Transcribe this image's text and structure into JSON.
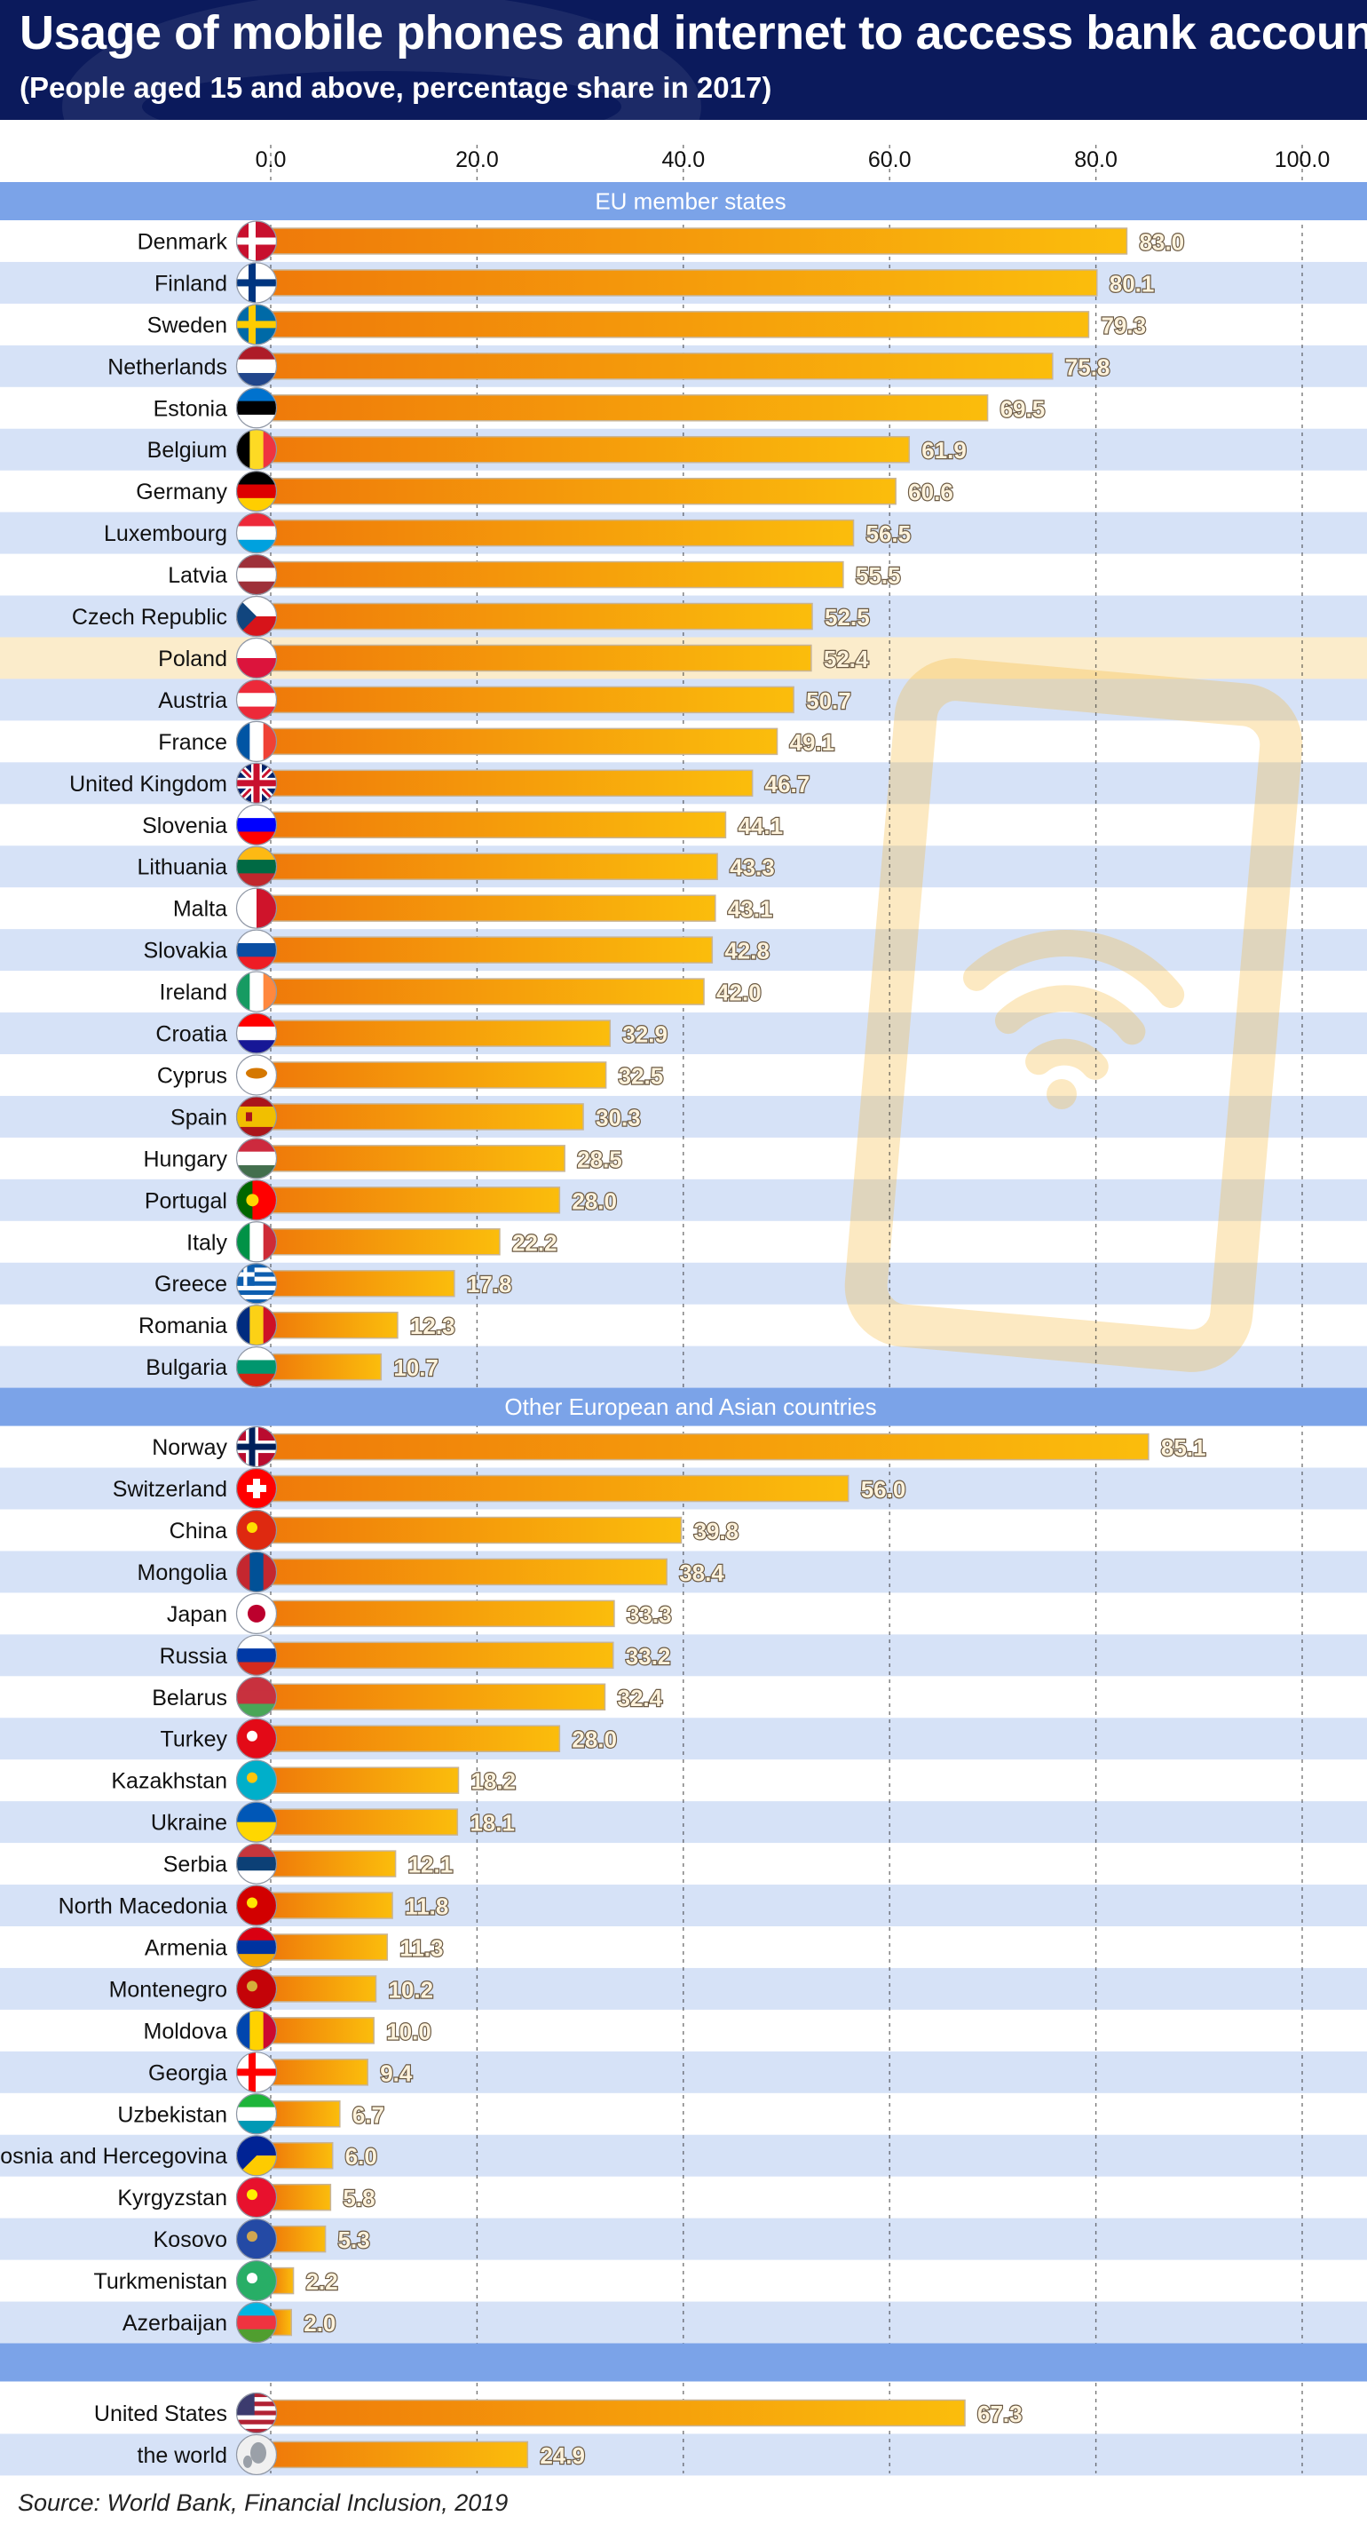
{
  "title": "Usage of mobile phones and internet to access bank accounts",
  "subtitle": "(People aged 15 and above, percentage share in 2017)",
  "source": "Source: World Bank, Financial Inclusion, 2019",
  "colors": {
    "header_bg": "#0b1a5c",
    "section_bar": "#7ba3e8",
    "stripe": "#d6e2f7",
    "highlight_row": "#fbeccb",
    "bar_start": "#ef7a0a",
    "bar_end": "#fbbd0c",
    "value_label": "#fff3dc"
  },
  "chart_data": {
    "type": "bar",
    "orientation": "horizontal",
    "xlim": [
      0,
      100
    ],
    "x_ticks": [
      "0.0",
      "20.0",
      "40.0",
      "60.0",
      "80.0",
      "100.0"
    ],
    "grid": "vertical dashed",
    "highlight": "Poland",
    "groups": [
      {
        "name": "EU member states",
        "categories": [
          "Denmark",
          "Finland",
          "Sweden",
          "Netherlands",
          "Estonia",
          "Belgium",
          "Germany",
          "Luxembourg",
          "Latvia",
          "Czech Republic",
          "Poland",
          "Austria",
          "France",
          "United Kingdom",
          "Slovenia",
          "Lithuania",
          "Malta",
          "Slovakia",
          "Ireland",
          "Croatia",
          "Cyprus",
          "Spain",
          "Hungary",
          "Portugal",
          "Italy",
          "Greece",
          "Romania",
          "Bulgaria"
        ],
        "values": [
          83.0,
          80.1,
          79.3,
          75.8,
          69.5,
          61.9,
          60.6,
          56.5,
          55.5,
          52.5,
          52.4,
          50.7,
          49.1,
          46.7,
          44.1,
          43.3,
          43.1,
          42.8,
          42.0,
          32.9,
          32.5,
          30.3,
          28.5,
          28.0,
          22.2,
          17.8,
          12.3,
          10.7
        ],
        "labels": [
          "83.0",
          "80.1",
          "79.3",
          "75.8",
          "69.5",
          "61.9",
          "60.6",
          "56.5",
          "55.5",
          "52.5",
          "52.4",
          "50.7",
          "49.1",
          "46.7",
          "44.1",
          "43.3",
          "43.1",
          "42.8",
          "42.0",
          "32.9",
          "32.5",
          "30.3",
          "28.5",
          "28.0",
          "22.2",
          "17.8",
          "12.3",
          "10.7"
        ]
      },
      {
        "name": "Other European and Asian countries",
        "categories": [
          "Norway",
          "Switzerland",
          "China",
          "Mongolia",
          "Japan",
          "Russia",
          "Belarus",
          "Turkey",
          "Kazakhstan",
          "Ukraine",
          "Serbia",
          "North Macedonia",
          "Armenia",
          "Montenegro",
          "Moldova",
          "Georgia",
          "Uzbekistan",
          "Bosnia and Hercegovina",
          "Kyrgyzstan",
          "Kosovo",
          "Turkmenistan",
          "Azerbaijan"
        ],
        "values": [
          85.1,
          56.0,
          39.8,
          38.4,
          33.3,
          33.2,
          32.4,
          28.0,
          18.2,
          18.1,
          12.1,
          11.8,
          11.3,
          10.2,
          10.0,
          9.4,
          6.7,
          6.0,
          5.8,
          5.3,
          2.2,
          2.0
        ],
        "labels": [
          "85.1",
          "56.0",
          "39.8",
          "38.4",
          "33.3",
          "33.2",
          "32.4",
          "28.0",
          "18.2",
          "18.1",
          "12.1",
          "11.8",
          "11.3",
          "10.2",
          "10.0",
          "9.4",
          "6.7",
          "6.0",
          "5.8",
          "5.3",
          "2.2",
          "2.0"
        ]
      },
      {
        "name": "",
        "categories": [
          "United States",
          "the world"
        ],
        "values": [
          67.3,
          24.9
        ],
        "labels": [
          "67.3",
          "24.9"
        ]
      }
    ]
  }
}
